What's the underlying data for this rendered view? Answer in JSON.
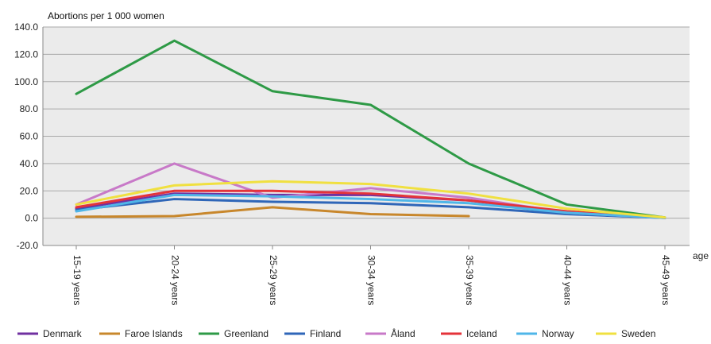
{
  "chart_data": {
    "type": "line",
    "ylabel": "Abortions per 1 000 women",
    "xlabel": "age",
    "categories": [
      "15-19 years",
      "20-24 years",
      "25-29 years",
      "30-34 years",
      "35-39 years",
      "40-44 years",
      "45-49 years"
    ],
    "ylim": [
      -20,
      140
    ],
    "yticks": [
      "140.0",
      "120.0",
      "100.0",
      "80.0",
      "60.0",
      "40.0",
      "20.0",
      "0.0",
      "-20.0"
    ],
    "ytick_values": [
      140,
      120,
      100,
      80,
      60,
      40,
      20,
      0,
      -20
    ],
    "grid": true,
    "legend_position": "bottom",
    "series": [
      {
        "name": "Denmark",
        "color": "#7030a0",
        "values": [
          7,
          18,
          17,
          17,
          13,
          4,
          0.3
        ]
      },
      {
        "name": "Faroe Islands",
        "color": "#c8872c",
        "values": [
          1,
          1.5,
          8,
          3,
          1.5,
          null,
          null
        ]
      },
      {
        "name": "Greenland",
        "color": "#2e9a46",
        "values": [
          91,
          130,
          93,
          83,
          40,
          10,
          0.5
        ]
      },
      {
        "name": "Finland",
        "color": "#2f66b8",
        "values": [
          6,
          14,
          12,
          11,
          8,
          3,
          0.2
        ]
      },
      {
        "name": "Åland",
        "color": "#c879c8",
        "values": [
          10,
          40,
          15,
          22,
          15,
          4,
          0.2
        ]
      },
      {
        "name": "Iceland",
        "color": "#e4333a",
        "values": [
          8,
          20,
          20,
          18,
          13,
          5,
          0.3
        ]
      },
      {
        "name": "Norway",
        "color": "#4fb6e8",
        "values": [
          5,
          17,
          16,
          14,
          11,
          4,
          0.2
        ]
      },
      {
        "name": "Sweden",
        "color": "#f0e040",
        "values": [
          10,
          24,
          27,
          25,
          18,
          7,
          0.5
        ]
      }
    ]
  }
}
